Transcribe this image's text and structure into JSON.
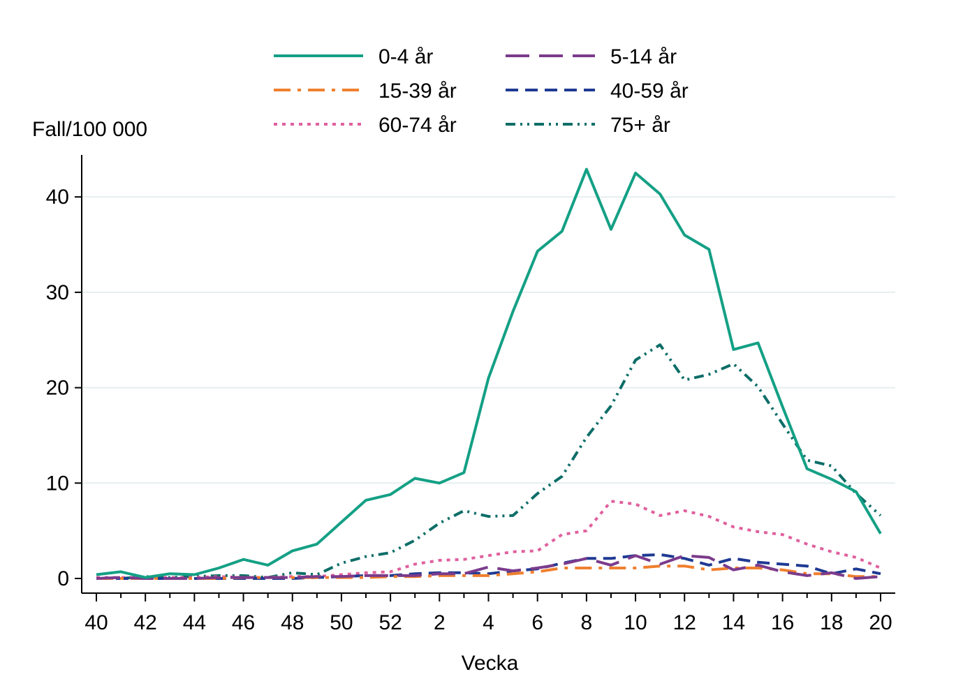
{
  "chart_data": {
    "type": "line",
    "ylabel": "Fall/100 000",
    "xlabel": "Vecka",
    "ylim": [
      0,
      44
    ],
    "y_ticks": [
      0,
      10,
      20,
      30,
      40
    ],
    "x_tick_labels": [
      "40",
      "42",
      "44",
      "46",
      "48",
      "50",
      "52",
      "2",
      "4",
      "6",
      "8",
      "10",
      "12",
      "14",
      "16",
      "18",
      "20"
    ],
    "x": [
      "40",
      "41",
      "42",
      "43",
      "44",
      "45",
      "46",
      "47",
      "48",
      "49",
      "50",
      "51",
      "52",
      "1",
      "2",
      "3",
      "4",
      "5",
      "6",
      "7",
      "8",
      "9",
      "10",
      "11",
      "12",
      "13",
      "14",
      "15",
      "16",
      "17",
      "18",
      "19",
      "20"
    ],
    "grid": "horizontal",
    "legend_position": "top",
    "series": [
      {
        "name": "0-4 år",
        "color": "#14a085",
        "dash": "solid",
        "values": [
          0.4,
          0.7,
          0.1,
          0.5,
          0.4,
          1.1,
          2.0,
          1.4,
          2.9,
          3.6,
          5.9,
          8.2,
          8.8,
          10.5,
          10.0,
          11.1,
          21.0,
          28.0,
          34.3,
          36.4,
          42.9,
          36.6,
          42.5,
          40.3,
          36.0,
          34.5,
          24.0,
          24.7,
          18.0,
          11.5,
          10.4,
          9.1,
          4.7
        ]
      },
      {
        "name": "5-14 år",
        "color": "#7b3b8c",
        "dash": "longdash",
        "values": [
          0.0,
          0.1,
          0.0,
          0.0,
          0.0,
          0.1,
          0.1,
          0.1,
          0.1,
          0.2,
          0.2,
          0.3,
          0.3,
          0.3,
          0.5,
          0.5,
          1.2,
          0.8,
          1.1,
          1.5,
          2.1,
          1.4,
          2.4,
          1.5,
          2.4,
          2.2,
          0.9,
          1.4,
          0.7,
          0.3,
          0.6,
          0.0,
          0.2
        ]
      },
      {
        "name": "15-39 år",
        "color": "#f07f2e",
        "dash": "dashdot",
        "values": [
          0.0,
          0.0,
          0.0,
          0.0,
          0.0,
          0.0,
          0.1,
          0.1,
          0.1,
          0.1,
          0.1,
          0.1,
          0.2,
          0.2,
          0.3,
          0.3,
          0.3,
          0.5,
          0.7,
          1.1,
          1.1,
          1.1,
          1.1,
          1.3,
          1.3,
          0.9,
          1.1,
          1.1,
          0.9,
          0.5,
          0.5,
          0.2,
          0.2
        ]
      },
      {
        "name": "40-59 år",
        "color": "#1f3a93",
        "dash": "dash",
        "values": [
          0.0,
          0.0,
          0.0,
          0.0,
          0.0,
          0.0,
          0.0,
          0.0,
          0.0,
          0.1,
          0.2,
          0.3,
          0.3,
          0.5,
          0.6,
          0.6,
          0.5,
          0.8,
          1.0,
          1.6,
          2.1,
          2.1,
          2.4,
          2.5,
          2.1,
          1.4,
          2.1,
          1.7,
          1.5,
          1.3,
          0.5,
          1.0,
          0.5
        ]
      },
      {
        "name": "60-74 år",
        "color": "#e0609e",
        "dash": "dot",
        "values": [
          0.1,
          0.1,
          0.1,
          0.1,
          0.1,
          0.2,
          0.1,
          0.1,
          0.2,
          0.2,
          0.4,
          0.6,
          0.7,
          1.5,
          1.9,
          2.0,
          2.4,
          2.8,
          2.9,
          4.6,
          5.0,
          8.1,
          7.8,
          6.6,
          7.1,
          6.5,
          5.4,
          4.9,
          4.6,
          3.6,
          2.8,
          2.2,
          1.1
        ]
      },
      {
        "name": "75+ år",
        "color": "#0d6e68",
        "dash": "dashdotdot",
        "values": [
          0.0,
          0.0,
          0.2,
          0.1,
          0.2,
          0.3,
          0.3,
          0.1,
          0.6,
          0.4,
          1.6,
          2.3,
          2.7,
          4.0,
          5.8,
          7.1,
          6.5,
          6.6,
          8.9,
          10.7,
          14.8,
          18.1,
          22.9,
          24.5,
          20.8,
          21.4,
          22.5,
          20.1,
          16.2,
          12.4,
          11.8,
          8.9,
          6.6
        ]
      }
    ]
  }
}
